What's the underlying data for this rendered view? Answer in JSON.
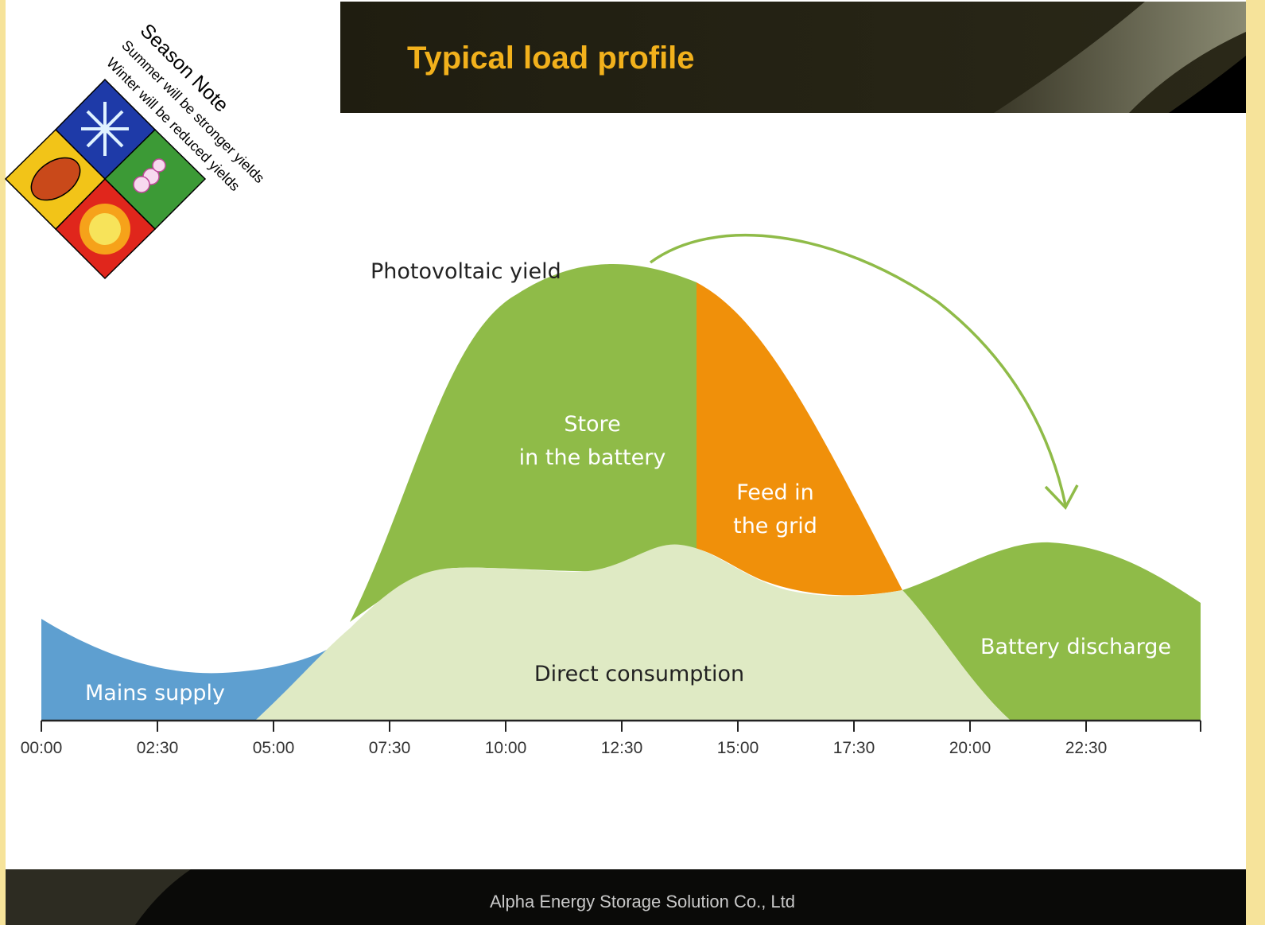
{
  "header": {
    "title": "Typical load profile"
  },
  "season_note": {
    "title": "Season Note",
    "lines": [
      "Summer will be stronger yields",
      "Winter will be reduced yields"
    ]
  },
  "diagram": {
    "pv_label": "Photovoltaic yield",
    "store_label": [
      "Store",
      "in the battery"
    ],
    "feed_label": [
      "Feed in",
      "the grid"
    ],
    "direct_label": "Direct consumption",
    "mains_label": "Mains supply",
    "battery_label": "Battery discharge",
    "time_ticks": [
      "00:00",
      "02:30",
      "05:00",
      "07:30",
      "10:00",
      "12:30",
      "15:00",
      "17:30",
      "20:00",
      "22:30"
    ]
  },
  "footer": {
    "text": "Alpha Energy Storage Solution Co., Ltd"
  }
}
